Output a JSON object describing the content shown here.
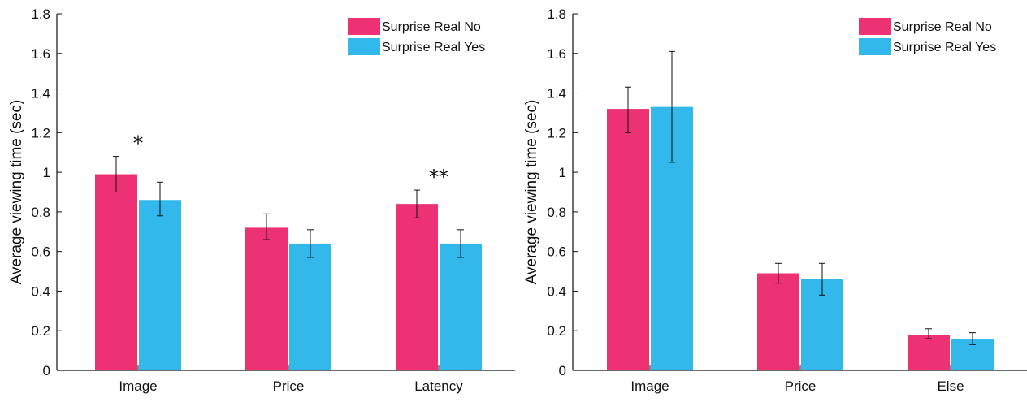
{
  "colors": {
    "no": "#ec3274",
    "yes": "#33b8eb",
    "axis": "#111111"
  },
  "chart_data": [
    {
      "type": "bar",
      "ylabel": "Average viewing time (sec)",
      "ylim": [
        0,
        1.8
      ],
      "yticks": [
        "0",
        "0.2",
        "0.4",
        "0.6",
        "0.8",
        "1",
        "1.2",
        "1.4",
        "1.6",
        "1.8"
      ],
      "categories": [
        "Image",
        "Price",
        "Latency"
      ],
      "legend_position": "top-right",
      "series": [
        {
          "name": "Surprise Real No",
          "values": [
            0.99,
            0.72,
            0.84
          ],
          "err_low": [
            0.9,
            0.66,
            0.77
          ],
          "err_high": [
            1.08,
            0.79,
            0.91
          ]
        },
        {
          "name": "Surprise Real Yes",
          "values": [
            0.86,
            0.64,
            0.64
          ],
          "err_low": [
            0.78,
            0.57,
            0.57
          ],
          "err_high": [
            0.95,
            0.71,
            0.71
          ]
        }
      ],
      "annotations": [
        "*",
        "",
        "**"
      ]
    },
    {
      "type": "bar",
      "ylabel": "Average viewing time (sec)",
      "ylim": [
        0,
        1.8
      ],
      "yticks": [
        "0",
        "0.2",
        "0.4",
        "0.6",
        "0.8",
        "1",
        "1.2",
        "1.4",
        "1.6",
        "1.8"
      ],
      "categories": [
        "Image",
        "Price",
        "Else"
      ],
      "legend_position": "top-right",
      "series": [
        {
          "name": "Surprise Real No",
          "values": [
            1.32,
            0.49,
            0.18
          ],
          "err_low": [
            1.2,
            0.44,
            0.16
          ],
          "err_high": [
            1.43,
            0.54,
            0.21
          ]
        },
        {
          "name": "Surprise Real Yes",
          "values": [
            1.33,
            0.46,
            0.16
          ],
          "err_low": [
            1.05,
            0.38,
            0.13
          ],
          "err_high": [
            1.61,
            0.54,
            0.19
          ]
        }
      ],
      "annotations": [
        "",
        "",
        ""
      ]
    }
  ]
}
